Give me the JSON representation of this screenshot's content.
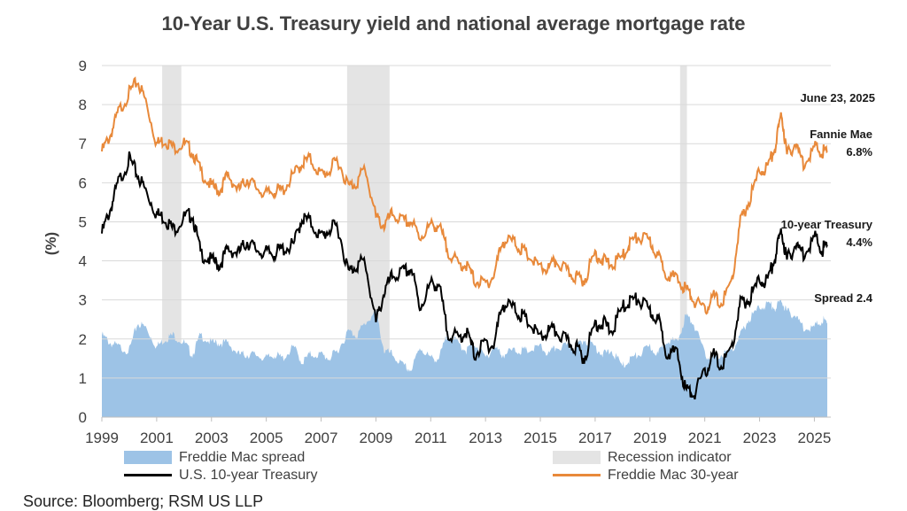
{
  "chart_data": {
    "type": "line",
    "title": "10-Year U.S. Treasury yield and national average mortgage rate",
    "ylabel": "(%)",
    "xlabel": "",
    "ylim": [
      0,
      9
    ],
    "xlim": [
      1999,
      2025.6
    ],
    "y_ticks": [
      "0",
      "1",
      "2",
      "3",
      "4",
      "5",
      "6",
      "7",
      "8",
      "9"
    ],
    "x_ticks": [
      "1999",
      "2001",
      "2003",
      "2005",
      "2007",
      "2009",
      "2011",
      "2013",
      "2015",
      "2017",
      "2019",
      "2021",
      "2023",
      "2025"
    ],
    "recessions": [
      [
        2001.2,
        2001.9
      ],
      [
        2007.95,
        2009.5
      ],
      [
        2020.1,
        2020.35
      ]
    ],
    "series": [
      {
        "name": "Freddie Mac 30-year",
        "color": "#E8893A",
        "x": [
          1999.0,
          1999.3,
          1999.6,
          2000.0,
          2000.3,
          2000.6,
          2001.0,
          2001.3,
          2001.6,
          2002.0,
          2002.3,
          2002.6,
          2003.0,
          2003.3,
          2003.6,
          2004.0,
          2004.3,
          2004.6,
          2005.0,
          2005.3,
          2005.6,
          2006.0,
          2006.3,
          2006.6,
          2007.0,
          2007.3,
          2007.6,
          2008.0,
          2008.3,
          2008.6,
          2009.0,
          2009.3,
          2009.6,
          2010.0,
          2010.3,
          2010.6,
          2011.0,
          2011.3,
          2011.6,
          2012.0,
          2012.3,
          2012.6,
          2013.0,
          2013.3,
          2013.6,
          2014.0,
          2014.3,
          2014.6,
          2015.0,
          2015.3,
          2015.6,
          2016.0,
          2016.3,
          2016.6,
          2017.0,
          2017.3,
          2017.6,
          2018.0,
          2018.3,
          2018.6,
          2019.0,
          2019.3,
          2019.6,
          2020.0,
          2020.3,
          2020.6,
          2021.0,
          2021.3,
          2021.6,
          2022.0,
          2022.3,
          2022.6,
          2023.0,
          2023.3,
          2023.6,
          2023.8,
          2024.0,
          2024.3,
          2024.6,
          2025.0,
          2025.3,
          2025.47
        ],
        "values": [
          6.8,
          7.2,
          7.8,
          8.3,
          8.6,
          8.1,
          7.0,
          7.1,
          6.9,
          7.0,
          6.8,
          6.3,
          5.9,
          5.8,
          6.2,
          5.8,
          6.1,
          5.9,
          5.7,
          5.8,
          5.8,
          6.2,
          6.5,
          6.6,
          6.2,
          6.3,
          6.6,
          5.9,
          6.0,
          6.4,
          5.1,
          4.9,
          5.2,
          5.0,
          5.0,
          4.6,
          4.9,
          4.9,
          4.3,
          3.9,
          3.9,
          3.5,
          3.4,
          3.6,
          4.5,
          4.5,
          4.3,
          4.1,
          3.8,
          3.8,
          4.0,
          3.7,
          3.6,
          3.5,
          4.2,
          4.0,
          3.9,
          4.1,
          4.5,
          4.6,
          4.5,
          4.1,
          3.7,
          3.5,
          3.3,
          3.0,
          2.7,
          3.1,
          2.9,
          3.5,
          5.0,
          5.5,
          6.3,
          6.4,
          7.0,
          7.8,
          6.7,
          7.0,
          6.5,
          6.9,
          6.8,
          6.8
        ]
      },
      {
        "name": "U.S. 10-year Treasury",
        "color": "#000000",
        "x": [
          1999.0,
          1999.3,
          1999.6,
          2000.0,
          2000.3,
          2000.6,
          2001.0,
          2001.3,
          2001.6,
          2002.0,
          2002.3,
          2002.6,
          2003.0,
          2003.3,
          2003.6,
          2004.0,
          2004.3,
          2004.6,
          2005.0,
          2005.3,
          2005.6,
          2006.0,
          2006.3,
          2006.6,
          2007.0,
          2007.3,
          2007.6,
          2008.0,
          2008.3,
          2008.6,
          2009.0,
          2009.3,
          2009.6,
          2010.0,
          2010.3,
          2010.6,
          2011.0,
          2011.3,
          2011.6,
          2012.0,
          2012.3,
          2012.6,
          2013.0,
          2013.3,
          2013.6,
          2014.0,
          2014.3,
          2014.6,
          2015.0,
          2015.3,
          2015.6,
          2016.0,
          2016.3,
          2016.6,
          2017.0,
          2017.3,
          2017.6,
          2018.0,
          2018.3,
          2018.6,
          2019.0,
          2019.3,
          2019.6,
          2020.0,
          2020.3,
          2020.6,
          2021.0,
          2021.3,
          2021.6,
          2022.0,
          2022.3,
          2022.6,
          2023.0,
          2023.3,
          2023.6,
          2023.8,
          2024.0,
          2024.3,
          2024.6,
          2025.0,
          2025.3,
          2025.47
        ],
        "values": [
          4.7,
          5.3,
          6.0,
          6.6,
          6.2,
          5.8,
          5.2,
          5.1,
          4.8,
          5.1,
          5.2,
          4.2,
          4.0,
          3.9,
          4.3,
          4.2,
          4.5,
          4.3,
          4.2,
          4.2,
          4.3,
          4.4,
          5.1,
          5.0,
          4.6,
          4.8,
          4.9,
          3.7,
          3.9,
          4.0,
          2.4,
          3.2,
          3.6,
          3.7,
          3.8,
          2.8,
          3.4,
          3.4,
          2.2,
          2.0,
          2.2,
          1.6,
          1.9,
          1.8,
          2.9,
          2.8,
          2.6,
          2.4,
          2.0,
          2.2,
          2.2,
          1.9,
          1.8,
          1.5,
          2.4,
          2.4,
          2.2,
          2.8,
          3.0,
          3.0,
          2.7,
          2.5,
          1.7,
          1.6,
          0.7,
          0.6,
          1.1,
          1.6,
          1.3,
          1.8,
          2.9,
          3.0,
          3.5,
          3.5,
          4.2,
          4.8,
          4.0,
          4.4,
          4.2,
          4.6,
          4.3,
          4.4
        ]
      },
      {
        "name": "Freddie Mac spread",
        "color": "#9DC3E6",
        "x": [
          1999.0,
          1999.3,
          1999.6,
          2000.0,
          2000.3,
          2000.6,
          2001.0,
          2001.3,
          2001.6,
          2002.0,
          2002.3,
          2002.6,
          2003.0,
          2003.3,
          2003.6,
          2004.0,
          2004.3,
          2004.6,
          2005.0,
          2005.3,
          2005.6,
          2006.0,
          2006.3,
          2006.6,
          2007.0,
          2007.3,
          2007.6,
          2008.0,
          2008.3,
          2008.6,
          2009.0,
          2009.3,
          2009.6,
          2010.0,
          2010.3,
          2010.6,
          2011.0,
          2011.3,
          2011.6,
          2012.0,
          2012.3,
          2012.6,
          2013.0,
          2013.3,
          2013.6,
          2014.0,
          2014.3,
          2014.6,
          2015.0,
          2015.3,
          2015.6,
          2016.0,
          2016.3,
          2016.6,
          2017.0,
          2017.3,
          2017.6,
          2018.0,
          2018.3,
          2018.6,
          2019.0,
          2019.3,
          2019.6,
          2020.0,
          2020.3,
          2020.6,
          2021.0,
          2021.3,
          2021.6,
          2022.0,
          2022.3,
          2022.6,
          2023.0,
          2023.3,
          2023.6,
          2023.8,
          2024.0,
          2024.3,
          2024.6,
          2025.0,
          2025.3,
          2025.47
        ],
        "values": [
          2.1,
          1.9,
          1.8,
          1.7,
          2.4,
          2.3,
          1.8,
          2.0,
          2.1,
          1.9,
          1.6,
          2.1,
          1.9,
          1.9,
          1.9,
          1.6,
          1.6,
          1.6,
          1.5,
          1.6,
          1.5,
          1.8,
          1.4,
          1.6,
          1.6,
          1.5,
          1.7,
          2.2,
          2.1,
          2.4,
          2.7,
          1.7,
          1.6,
          1.3,
          1.2,
          1.8,
          1.5,
          1.5,
          2.1,
          1.9,
          1.7,
          1.9,
          1.5,
          1.8,
          1.6,
          1.7,
          1.7,
          1.7,
          1.8,
          1.6,
          1.8,
          1.8,
          1.8,
          2.0,
          1.8,
          1.6,
          1.7,
          1.3,
          1.5,
          1.6,
          1.8,
          1.6,
          2.0,
          1.9,
          2.6,
          2.4,
          1.6,
          1.5,
          1.6,
          1.7,
          2.1,
          2.5,
          2.8,
          2.9,
          2.8,
          3.0,
          2.7,
          2.6,
          2.3,
          2.3,
          2.5,
          2.4
        ]
      }
    ],
    "annotations": {
      "date": "June 23, 2025",
      "fannie": "Fannie Mae",
      "fannie_val": "6.8%",
      "treasury": "10-year Treasury",
      "treasury_val": "4.4%",
      "spread": "Spread 2.4"
    },
    "legend": {
      "spread": "Freddie Mac spread",
      "recession": "Recession indicator",
      "treasury": "U.S. 10-year Treasury",
      "mortgage": "Freddie Mac 30-year"
    },
    "colors": {
      "spread": "#9DC3E6",
      "recession": "#E4E4E4",
      "treasury": "#000000",
      "mortgage": "#E8893A"
    }
  },
  "source": "Source: Bloomberg; RSM US LLP"
}
